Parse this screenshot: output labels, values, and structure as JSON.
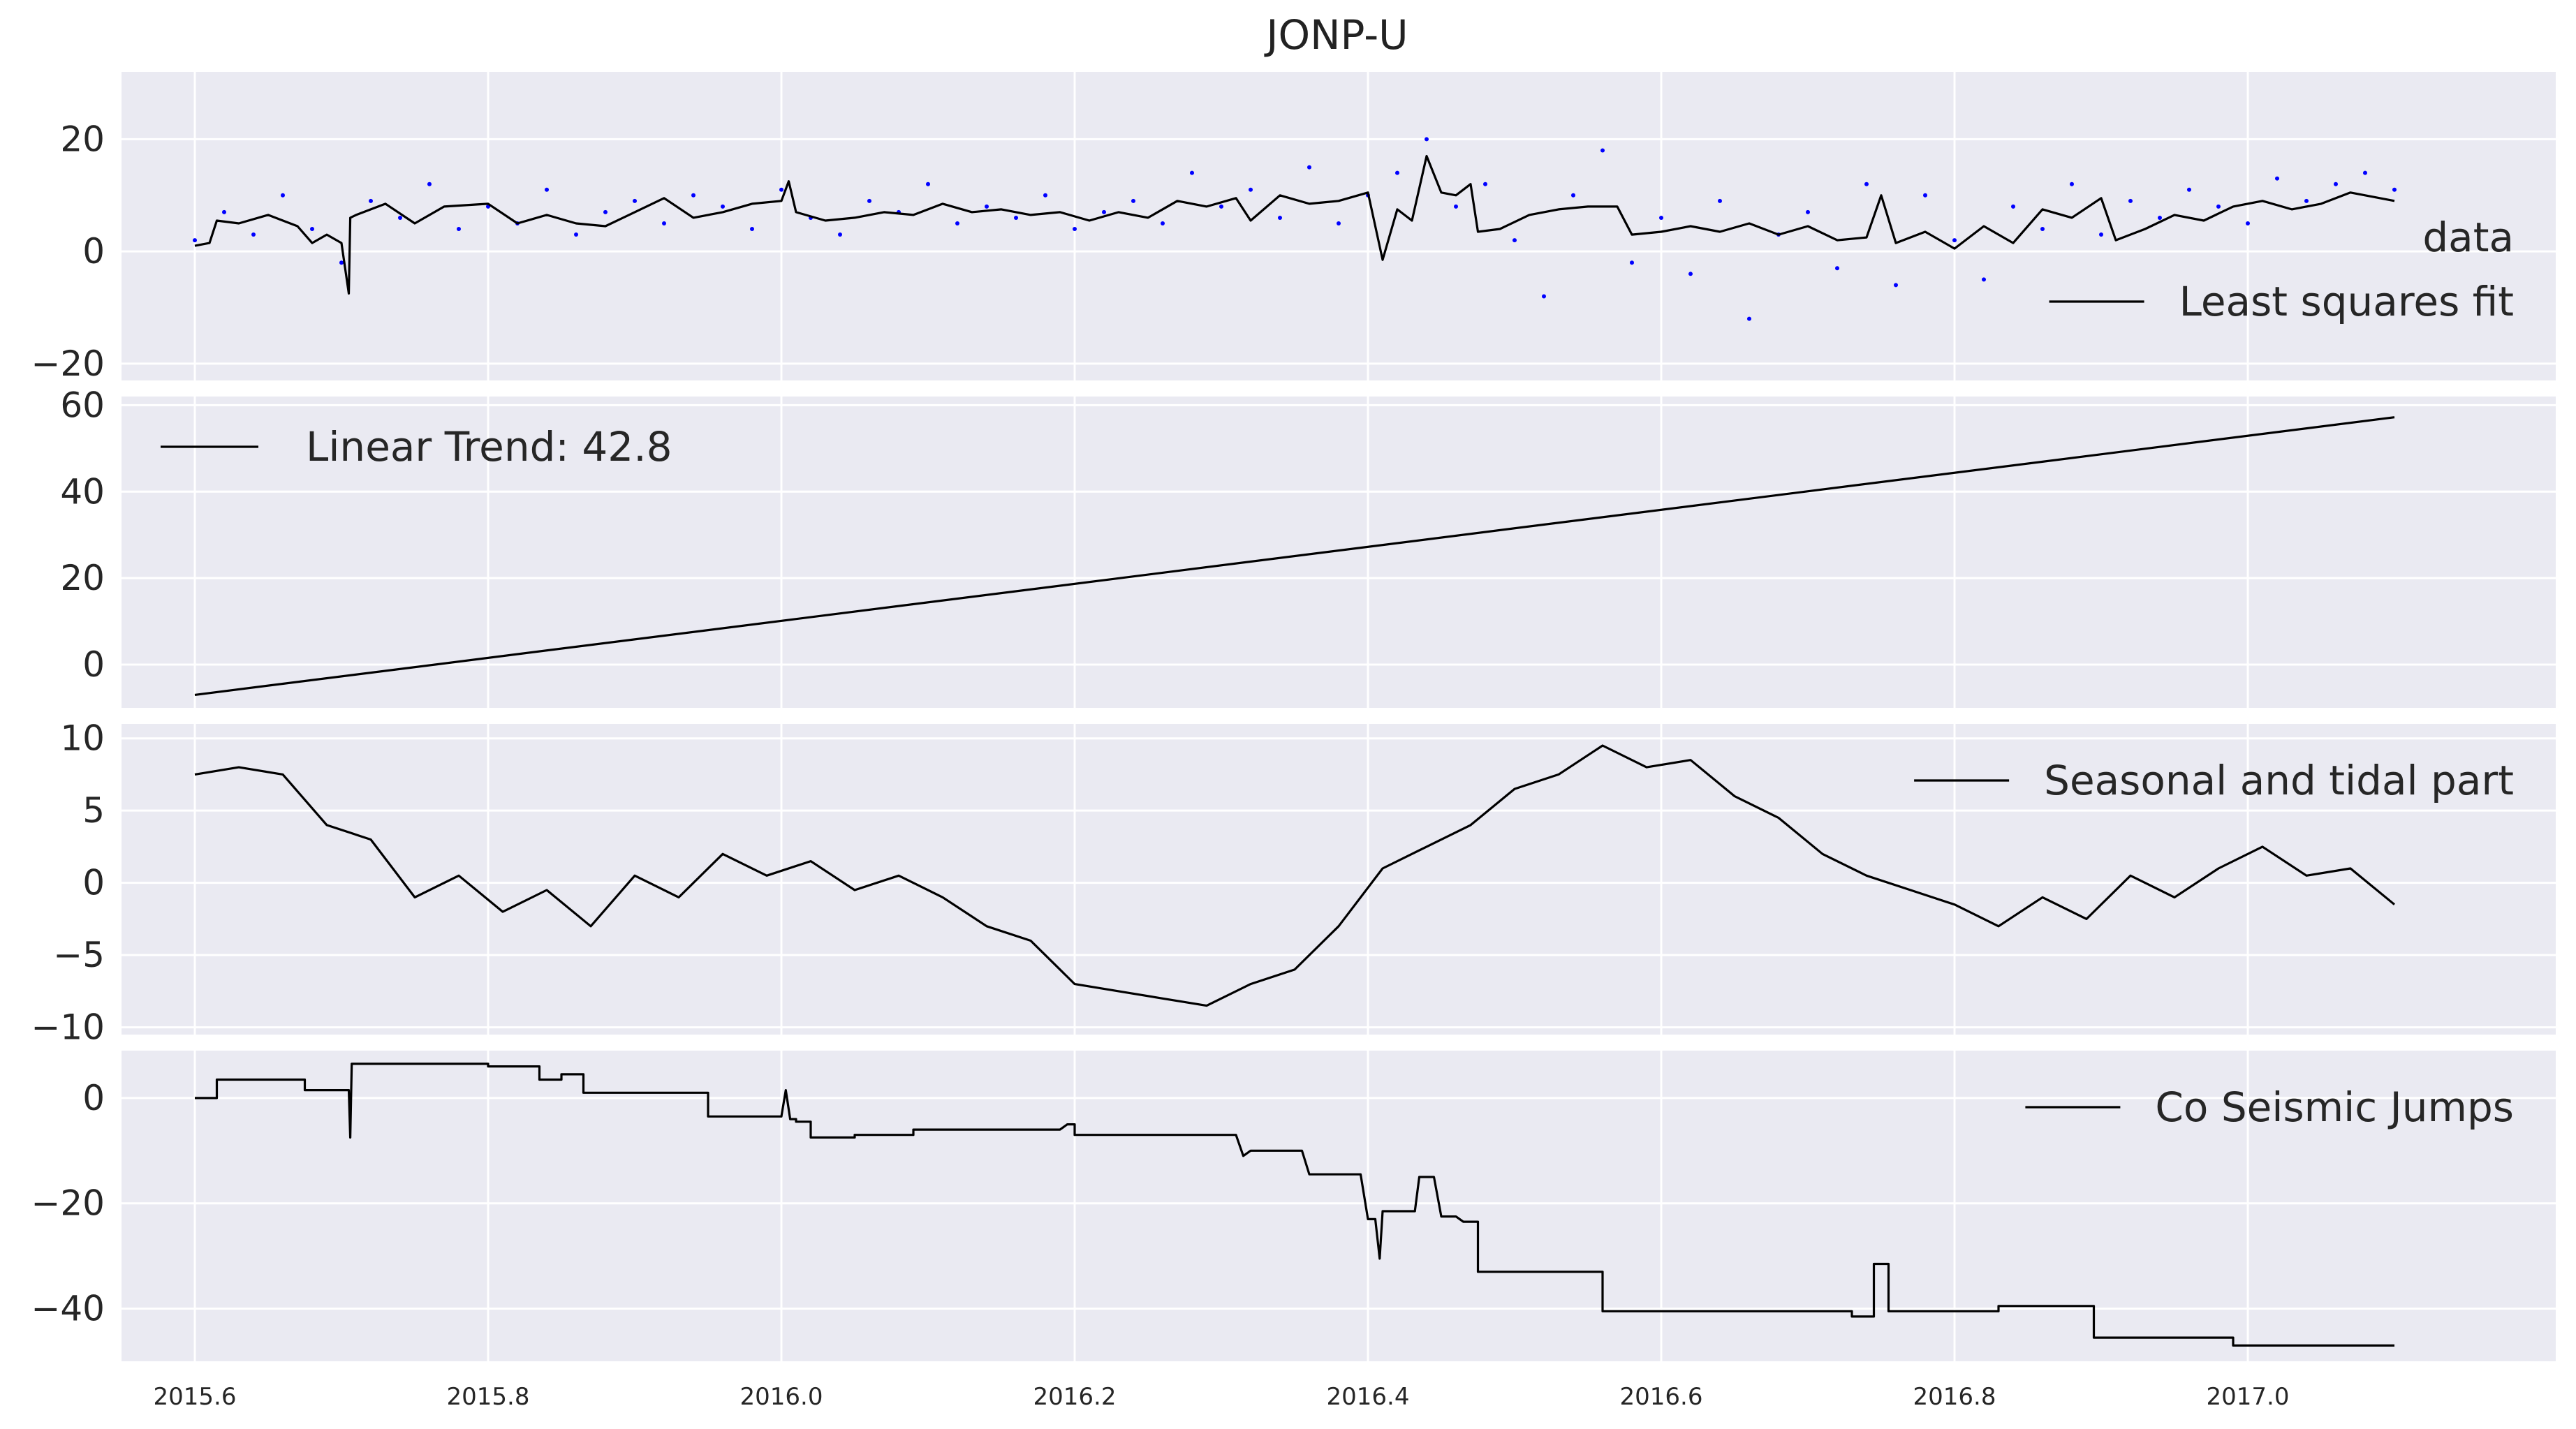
{
  "title": "JONP-U",
  "colors": {
    "panel_background": "#eaeaf2",
    "grid": "#ffffff",
    "line": "#000000",
    "data_points": "#0000ff"
  },
  "x_axis": {
    "range": [
      2015.55,
      2017.21
    ],
    "ticks": [
      2015.6,
      2015.8,
      2016.0,
      2016.2,
      2016.4,
      2016.6,
      2016.8,
      2017.0
    ],
    "tick_labels": [
      "2015.6",
      "2015.8",
      "2016.0",
      "2016.2",
      "2016.4",
      "2016.6",
      "2016.8",
      "2017.0"
    ]
  },
  "chart_data": [
    {
      "type": "scatter",
      "panel": 1,
      "ylim": [
        -23,
        32
      ],
      "yticks": [
        -20,
        0,
        20
      ],
      "ytick_labels": [
        "−20",
        "0",
        "20"
      ],
      "grid": true,
      "legend_position": "right",
      "legend": [
        {
          "label": "data",
          "style": "dots",
          "color": "#0000ff"
        },
        {
          "label": "Least squares fit",
          "style": "line",
          "color": "#000000"
        }
      ],
      "data_points": {
        "x": [
          2015.6,
          2015.62,
          2015.64,
          2015.66,
          2015.68,
          2015.7,
          2015.72,
          2015.74,
          2015.76,
          2015.78,
          2015.8,
          2015.82,
          2015.84,
          2015.86,
          2015.88,
          2015.9,
          2015.92,
          2015.94,
          2015.96,
          2015.98,
          2016.0,
          2016.02,
          2016.04,
          2016.06,
          2016.08,
          2016.1,
          2016.12,
          2016.14,
          2016.16,
          2016.18,
          2016.2,
          2016.22,
          2016.24,
          2016.26,
          2016.28,
          2016.3,
          2016.32,
          2016.34,
          2016.36,
          2016.38,
          2016.4,
          2016.42,
          2016.44,
          2016.46,
          2016.48,
          2016.5,
          2016.52,
          2016.54,
          2016.56,
          2016.58,
          2016.6,
          2016.62,
          2016.64,
          2016.66,
          2016.68,
          2016.7,
          2016.72,
          2016.74,
          2016.76,
          2016.78,
          2016.8,
          2016.82,
          2016.84,
          2016.86,
          2016.88,
          2016.9,
          2016.92,
          2016.94,
          2016.96,
          2016.98,
          2017.0,
          2017.02,
          2017.04,
          2017.06,
          2017.08,
          2017.1
        ],
        "y": [
          2,
          7,
          3,
          10,
          4,
          -2,
          9,
          6,
          12,
          4,
          8,
          5,
          11,
          3,
          7,
          9,
          5,
          10,
          8,
          4,
          11,
          6,
          3,
          9,
          7,
          12,
          5,
          8,
          6,
          10,
          4,
          7,
          9,
          5,
          14,
          8,
          11,
          6,
          15,
          5,
          10,
          14,
          20,
          8,
          12,
          2,
          -8,
          10,
          18,
          -2,
          6,
          -4,
          9,
          -12,
          3,
          7,
          -3,
          12,
          -6,
          10,
          2,
          -5,
          8,
          4,
          12,
          3,
          9,
          6,
          11,
          8,
          5,
          13,
          9,
          12,
          14,
          11
        ]
      },
      "series": [
        {
          "name": "Least squares fit",
          "x": [
            2015.6,
            2015.61,
            2015.615,
            2015.63,
            2015.65,
            2015.67,
            2015.68,
            2015.69,
            2015.7,
            2015.705,
            2015.706,
            2015.71,
            2015.73,
            2015.75,
            2015.77,
            2015.8,
            2015.82,
            2015.84,
            2015.86,
            2015.88,
            2015.9,
            2015.92,
            2015.94,
            2015.96,
            2015.98,
            2016.0,
            2016.005,
            2016.01,
            2016.03,
            2016.05,
            2016.07,
            2016.09,
            2016.11,
            2016.13,
            2016.15,
            2016.17,
            2016.19,
            2016.21,
            2016.23,
            2016.25,
            2016.27,
            2016.29,
            2016.31,
            2016.32,
            2016.34,
            2016.36,
            2016.38,
            2016.4,
            2016.41,
            2016.42,
            2016.43,
            2016.44,
            2016.45,
            2016.46,
            2016.47,
            2016.475,
            2016.49,
            2016.51,
            2016.53,
            2016.55,
            2016.57,
            2016.58,
            2016.6,
            2016.62,
            2016.64,
            2016.66,
            2016.68,
            2016.7,
            2016.72,
            2016.74,
            2016.75,
            2016.76,
            2016.78,
            2016.8,
            2016.82,
            2016.84,
            2016.86,
            2016.88,
            2016.9,
            2016.91,
            2016.93,
            2016.95,
            2016.97,
            2016.99,
            2017.01,
            2017.03,
            2017.05,
            2017.07,
            2017.1
          ],
          "y": [
            1,
            1.5,
            5.5,
            5,
            6.5,
            4.5,
            1.5,
            3,
            1.5,
            -7.5,
            6,
            6.5,
            8.5,
            5,
            8,
            8.5,
            5,
            6.5,
            5,
            4.5,
            7,
            9.5,
            6,
            7,
            8.5,
            9,
            12.5,
            7,
            5.5,
            6,
            7,
            6.5,
            8.5,
            7,
            7.5,
            6.5,
            7,
            5.5,
            7,
            6,
            9,
            8,
            9.5,
            5.5,
            10,
            8.5,
            9,
            10.5,
            -1.5,
            7.5,
            5.5,
            17,
            10.5,
            10,
            12,
            3.5,
            4,
            6.5,
            7.5,
            8,
            8,
            3,
            3.5,
            4.5,
            3.5,
            5,
            3,
            4.5,
            2,
            2.5,
            10,
            1.5,
            3.5,
            0.5,
            4.5,
            1.5,
            7.5,
            6,
            9.5,
            2,
            4,
            6.5,
            5.5,
            8,
            9,
            7.5,
            8.5,
            10.5,
            9
          ]
        }
      ]
    },
    {
      "type": "line",
      "panel": 2,
      "ylim": [
        -10,
        62
      ],
      "yticks": [
        0,
        20,
        40,
        60
      ],
      "ytick_labels": [
        "0",
        "20",
        "40",
        "60"
      ],
      "grid": true,
      "legend_position": "top-left",
      "legend": [
        {
          "label": "Linear Trend: 42.8",
          "style": "line",
          "color": "#000000"
        }
      ],
      "series": [
        {
          "name": "Linear Trend: 42.8",
          "x": [
            2015.6,
            2017.1
          ],
          "y": [
            -7,
            57.2
          ]
        }
      ]
    },
    {
      "type": "line",
      "panel": 3,
      "ylim": [
        -10.5,
        11
      ],
      "yticks": [
        -10,
        -5,
        0,
        5,
        10
      ],
      "ytick_labels": [
        "−10",
        "−5",
        "0",
        "5",
        "10"
      ],
      "grid": true,
      "legend_position": "top-right",
      "legend": [
        {
          "label": "Seasonal and tidal part",
          "style": "line",
          "color": "#000000"
        }
      ],
      "series": [
        {
          "name": "Seasonal and tidal part",
          "x": [
            2015.6,
            2015.63,
            2015.66,
            2015.69,
            2015.72,
            2015.75,
            2015.78,
            2015.81,
            2015.84,
            2015.87,
            2015.9,
            2015.93,
            2015.96,
            2015.99,
            2016.02,
            2016.05,
            2016.08,
            2016.11,
            2016.14,
            2016.17,
            2016.2,
            2016.23,
            2016.26,
            2016.29,
            2016.32,
            2016.35,
            2016.38,
            2016.41,
            2016.44,
            2016.47,
            2016.5,
            2016.53,
            2016.56,
            2016.59,
            2016.62,
            2016.65,
            2016.68,
            2016.71,
            2016.74,
            2016.77,
            2016.8,
            2016.83,
            2016.86,
            2016.89,
            2016.92,
            2016.95,
            2016.98,
            2017.01,
            2017.04,
            2017.07,
            2017.1
          ],
          "y": [
            7.5,
            8,
            7.5,
            4,
            3,
            -1,
            0.5,
            -2,
            -0.5,
            -3,
            0.5,
            -1,
            2,
            0.5,
            1.5,
            -0.5,
            0.5,
            -1,
            -3,
            -4,
            -7,
            -7.5,
            -8,
            -8.5,
            -7,
            -6,
            -3,
            1,
            2.5,
            4,
            6.5,
            7.5,
            9.5,
            8,
            8.5,
            6,
            4.5,
            2,
            0.5,
            -0.5,
            -1.5,
            -3,
            -1,
            -2.5,
            0.5,
            -1,
            1,
            2.5,
            0.5,
            1,
            -1.5
          ]
        }
      ]
    },
    {
      "type": "line",
      "panel": 4,
      "ylim": [
        -50,
        9
      ],
      "yticks": [
        -40,
        -20,
        0
      ],
      "ytick_labels": [
        "−40",
        "−20",
        "0"
      ],
      "grid": true,
      "legend_position": "top-right",
      "legend": [
        {
          "label": "Co Seismic Jumps",
          "style": "line",
          "color": "#000000"
        }
      ],
      "series": [
        {
          "name": "Co Seismic Jumps",
          "x": [
            2015.6,
            2015.615,
            2015.615,
            2015.675,
            2015.675,
            2015.705,
            2015.706,
            2015.707,
            2015.8,
            2015.8,
            2015.835,
            2015.835,
            2015.85,
            2015.85,
            2015.865,
            2015.865,
            2015.95,
            2015.95,
            2016.0,
            2016.003,
            2016.006,
            2016.01,
            2016.01,
            2016.02,
            2016.02,
            2016.05,
            2016.05,
            2016.09,
            2016.09,
            2016.19,
            2016.195,
            2016.2,
            2016.2,
            2016.31,
            2016.315,
            2016.32,
            2016.355,
            2016.36,
            2016.395,
            2016.4,
            2016.405,
            2016.408,
            2016.41,
            2016.432,
            2016.435,
            2016.445,
            2016.45,
            2016.46,
            2016.465,
            2016.475,
            2016.475,
            2016.56,
            2016.56,
            2016.73,
            2016.73,
            2016.745,
            2016.745,
            2016.755,
            2016.755,
            2016.83,
            2016.83,
            2016.895,
            2016.895,
            2016.99,
            2016.99,
            2017.1
          ],
          "y": [
            0,
            0,
            3.5,
            3.5,
            1.5,
            1.5,
            -7.5,
            6.5,
            6.5,
            6,
            6,
            3.5,
            3.5,
            4.5,
            4.5,
            1,
            1,
            -3.5,
            -3.5,
            1.5,
            -4,
            -4,
            -4.5,
            -4.5,
            -7.5,
            -7.5,
            -7,
            -7,
            -6,
            -6,
            -5,
            -5,
            -7,
            -7,
            -11,
            -10,
            -10,
            -14.5,
            -14.5,
            -23,
            -23,
            -30.5,
            -21.5,
            -21.5,
            -15,
            -15,
            -22.5,
            -22.5,
            -23.5,
            -23.5,
            -33,
            -33,
            -40.5,
            -40.5,
            -41.5,
            -41.5,
            -31.5,
            -31.5,
            -40.5,
            -40.5,
            -39.5,
            -39.5,
            -45.5,
            -45.5,
            -47,
            -47
          ]
        }
      ]
    }
  ]
}
